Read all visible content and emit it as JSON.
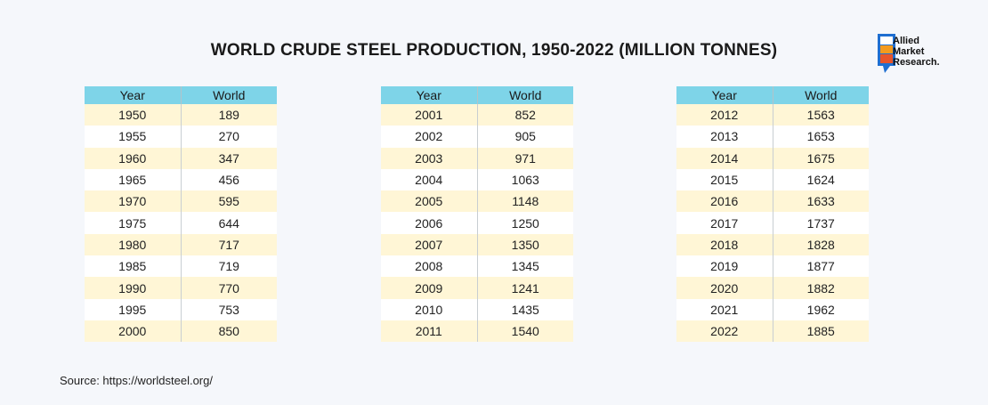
{
  "title": "WORLD CRUDE STEEL PRODUCTION, 1950-2022 (MILLION TONNES)",
  "logo": {
    "text": "Allied\nMarket\nResearch.",
    "colors": [
      "#1f6fd1",
      "#f39a1e",
      "#e8552b"
    ]
  },
  "source": "Source: https://worldsteel.org/",
  "colors": {
    "header": "#7ed4e8",
    "row_alt": "#fff6d6",
    "background": "#f5f7fb"
  },
  "chart_data": {
    "type": "table",
    "columns": [
      "Year",
      "World"
    ],
    "tables": [
      {
        "rows": [
          [
            "1950",
            "189"
          ],
          [
            "1955",
            "270"
          ],
          [
            "1960",
            "347"
          ],
          [
            "1965",
            "456"
          ],
          [
            "1970",
            "595"
          ],
          [
            "1975",
            "644"
          ],
          [
            "1980",
            "717"
          ],
          [
            "1985",
            "719"
          ],
          [
            "1990",
            "770"
          ],
          [
            "1995",
            "753"
          ],
          [
            "2000",
            "850"
          ]
        ]
      },
      {
        "rows": [
          [
            "2001",
            "852"
          ],
          [
            "2002",
            "905"
          ],
          [
            "2003",
            "971"
          ],
          [
            "2004",
            "1063"
          ],
          [
            "2005",
            "1148"
          ],
          [
            "2006",
            "1250"
          ],
          [
            "2007",
            "1350"
          ],
          [
            "2008",
            "1345"
          ],
          [
            "2009",
            "1241"
          ],
          [
            "2010",
            "1435"
          ],
          [
            "2011",
            "1540"
          ]
        ]
      },
      {
        "rows": [
          [
            "2012",
            "1563"
          ],
          [
            "2013",
            "1653"
          ],
          [
            "2014",
            "1675"
          ],
          [
            "2015",
            "1624"
          ],
          [
            "2016",
            "1633"
          ],
          [
            "2017",
            "1737"
          ],
          [
            "2018",
            "1828"
          ],
          [
            "2019",
            "1877"
          ],
          [
            "2020",
            "1882"
          ],
          [
            "2021",
            "1962"
          ],
          [
            "2022",
            "1885"
          ]
        ]
      }
    ]
  }
}
